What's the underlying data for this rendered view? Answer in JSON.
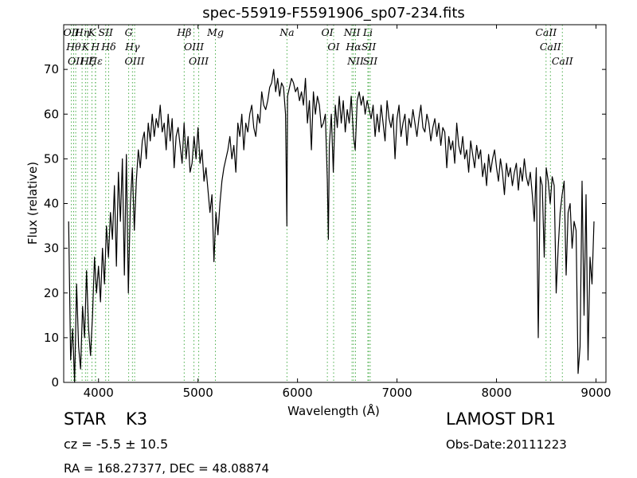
{
  "chart_data": {
    "type": "line",
    "title": "spec-55919-F5591906_sp07-234.fits",
    "xlabel": "Wavelength (Å)",
    "ylabel": "Flux (relative)",
    "xlim": [
      3650,
      9100
    ],
    "ylim": [
      0,
      80
    ],
    "xticks": [
      4000,
      5000,
      6000,
      7000,
      8000,
      9000
    ],
    "yticks": [
      0,
      10,
      20,
      30,
      40,
      50,
      60,
      70
    ],
    "grid": false,
    "legend": "none",
    "line_color": "#000000",
    "marker_color": "#2ca02c",
    "series": [
      {
        "x": [
          3700,
          3720,
          3740,
          3760,
          3780,
          3800,
          3820,
          3840,
          3860,
          3880,
          3900,
          3920,
          3940,
          3960,
          3980,
          4000,
          4020,
          4040,
          4060,
          4080,
          4100,
          4120,
          4140,
          4160,
          4180,
          4200,
          4220,
          4240,
          4260,
          4280,
          4300,
          4320,
          4340,
          4360,
          4380,
          4400,
          4420,
          4440,
          4460,
          4480,
          4500,
          4520,
          4540,
          4560,
          4580,
          4600,
          4620,
          4640,
          4660,
          4680,
          4700,
          4720,
          4740,
          4760,
          4780,
          4800,
          4820,
          4840,
          4860,
          4880,
          4900,
          4920,
          4940,
          4960,
          4980,
          5000,
          5020,
          5040,
          5060,
          5080,
          5100,
          5120,
          5140,
          5160,
          5180,
          5200,
          5220,
          5240,
          5260,
          5280,
          5300,
          5320,
          5340,
          5360,
          5380,
          5400,
          5420,
          5440,
          5460,
          5480,
          5500,
          5520,
          5540,
          5560,
          5580,
          5600,
          5620,
          5640,
          5660,
          5680,
          5700,
          5720,
          5740,
          5760,
          5780,
          5800,
          5820,
          5840,
          5860,
          5880,
          5893,
          5900,
          5920,
          5940,
          5960,
          5980,
          6000,
          6020,
          6040,
          6060,
          6080,
          6100,
          6120,
          6140,
          6160,
          6180,
          6200,
          6220,
          6240,
          6260,
          6280,
          6300,
          6310,
          6320,
          6340,
          6360,
          6380,
          6400,
          6420,
          6440,
          6460,
          6480,
          6500,
          6520,
          6540,
          6563,
          6580,
          6600,
          6620,
          6640,
          6660,
          6680,
          6700,
          6720,
          6740,
          6760,
          6780,
          6800,
          6820,
          6840,
          6860,
          6880,
          6900,
          6920,
          6940,
          6960,
          6980,
          7000,
          7020,
          7040,
          7060,
          7080,
          7100,
          7120,
          7140,
          7160,
          7180,
          7200,
          7220,
          7240,
          7260,
          7280,
          7300,
          7320,
          7340,
          7360,
          7380,
          7400,
          7420,
          7440,
          7460,
          7480,
          7500,
          7520,
          7540,
          7560,
          7580,
          7600,
          7620,
          7640,
          7660,
          7680,
          7700,
          7720,
          7740,
          7760,
          7780,
          7800,
          7820,
          7840,
          7860,
          7880,
          7900,
          7920,
          7940,
          7960,
          7980,
          8000,
          8020,
          8040,
          8060,
          8080,
          8100,
          8120,
          8140,
          8160,
          8180,
          8200,
          8220,
          8240,
          8260,
          8280,
          8300,
          8320,
          8340,
          8360,
          8380,
          8400,
          8420,
          8440,
          8460,
          8480,
          8500,
          8520,
          8540,
          8560,
          8580,
          8600,
          8620,
          8640,
          8660,
          8680,
          8700,
          8720,
          8740,
          8760,
          8780,
          8800,
          8820,
          8840,
          8860,
          8880,
          8900,
          8920,
          8940,
          8960,
          8980
        ],
        "y": [
          36,
          5,
          12,
          0,
          22,
          8,
          3,
          17,
          10,
          25,
          12,
          6,
          15,
          28,
          20,
          26,
          18,
          30,
          22,
          35,
          28,
          38,
          32,
          44,
          26,
          47,
          36,
          50,
          24,
          51,
          20,
          40,
          48,
          34,
          45,
          52,
          48,
          54,
          56,
          50,
          58,
          54,
          60,
          55,
          59,
          57,
          62,
          56,
          58,
          52,
          60,
          54,
          59,
          48,
          55,
          57,
          53,
          49,
          58,
          50,
          55,
          47,
          49,
          55,
          50,
          57,
          49,
          52,
          45,
          48,
          43,
          38,
          42,
          27,
          38,
          33,
          40,
          45,
          48,
          50,
          52,
          55,
          50,
          53,
          47,
          58,
          55,
          60,
          52,
          58,
          56,
          60,
          62,
          57,
          55,
          60,
          58,
          65,
          62,
          61,
          63,
          66,
          67,
          70,
          65,
          68,
          64,
          67,
          66,
          60,
          35,
          64,
          66,
          68,
          67,
          65,
          66,
          63,
          65,
          62,
          68,
          58,
          63,
          52,
          65,
          60,
          64,
          62,
          57,
          58,
          60,
          45,
          32,
          53,
          60,
          47,
          62,
          57,
          64,
          58,
          63,
          56,
          61,
          58,
          64,
          55,
          52,
          63,
          65,
          62,
          64,
          60,
          63,
          61,
          59,
          62,
          55,
          60,
          56,
          62,
          58,
          54,
          63,
          59,
          57,
          60,
          50,
          59,
          62,
          55,
          58,
          60,
          53,
          59,
          57,
          61,
          58,
          55,
          59,
          62,
          57,
          56,
          60,
          58,
          54,
          57,
          59,
          55,
          58,
          53,
          57,
          56,
          48,
          55,
          52,
          54,
          49,
          58,
          53,
          51,
          55,
          50,
          52,
          47,
          54,
          51,
          48,
          53,
          50,
          52,
          46,
          49,
          44,
          51,
          47,
          50,
          52,
          48,
          45,
          50,
          47,
          42,
          49,
          46,
          48,
          44,
          47,
          49,
          43,
          48,
          45,
          50,
          46,
          44,
          47,
          42,
          36,
          48,
          10,
          46,
          44,
          28,
          48,
          45,
          40,
          46,
          44,
          20,
          30,
          38,
          42,
          45,
          24,
          38,
          40,
          30,
          36,
          34,
          2,
          8,
          45,
          15,
          42,
          5,
          28,
          22,
          36
        ]
      }
    ],
    "lines": [
      {
        "x": 3727,
        "label": "OII"
      },
      {
        "x": 3750,
        "label": "Hθ"
      },
      {
        "x": 3771,
        "label": "OII"
      },
      {
        "x": 3835,
        "label": "Hη"
      },
      {
        "x": 3869,
        "label": "K"
      },
      {
        "x": 3889,
        "label": "Hζ"
      },
      {
        "x": 3934,
        "label": "K"
      },
      {
        "x": 3969,
        "label": "H"
      },
      {
        "x": 3970,
        "label": "Hε"
      },
      {
        "x": 4072,
        "label": "SII"
      },
      {
        "x": 4102,
        "label": "Hδ"
      },
      {
        "x": 4303,
        "label": "G"
      },
      {
        "x": 4341,
        "label": "Hγ"
      },
      {
        "x": 4363,
        "label": "OIII"
      },
      {
        "x": 4861,
        "label": "Hβ"
      },
      {
        "x": 4959,
        "label": "OIII"
      },
      {
        "x": 5007,
        "label": "OIII"
      },
      {
        "x": 5175,
        "label": "Mg"
      },
      {
        "x": 5894,
        "label": "Na"
      },
      {
        "x": 6300,
        "label": "OI"
      },
      {
        "x": 6363,
        "label": "OI"
      },
      {
        "x": 6548,
        "label": "NII"
      },
      {
        "x": 6563,
        "label": "Hα"
      },
      {
        "x": 6583,
        "label": "NII"
      },
      {
        "x": 6707,
        "label": "Li"
      },
      {
        "x": 6716,
        "label": "SII"
      },
      {
        "x": 6731,
        "label": "SII"
      },
      {
        "x": 8498,
        "label": "CaII"
      },
      {
        "x": 8542,
        "label": "CaII"
      },
      {
        "x": 8662,
        "label": "CaII"
      }
    ]
  },
  "info": {
    "object_class": "STAR",
    "subclass": "K3",
    "survey": "LAMOST DR1",
    "redshift": "cz = -5.5 ± 10.5",
    "obs_date": "Obs-Date:20111223",
    "coords": "RA = 168.27377, DEC = 48.08874"
  }
}
